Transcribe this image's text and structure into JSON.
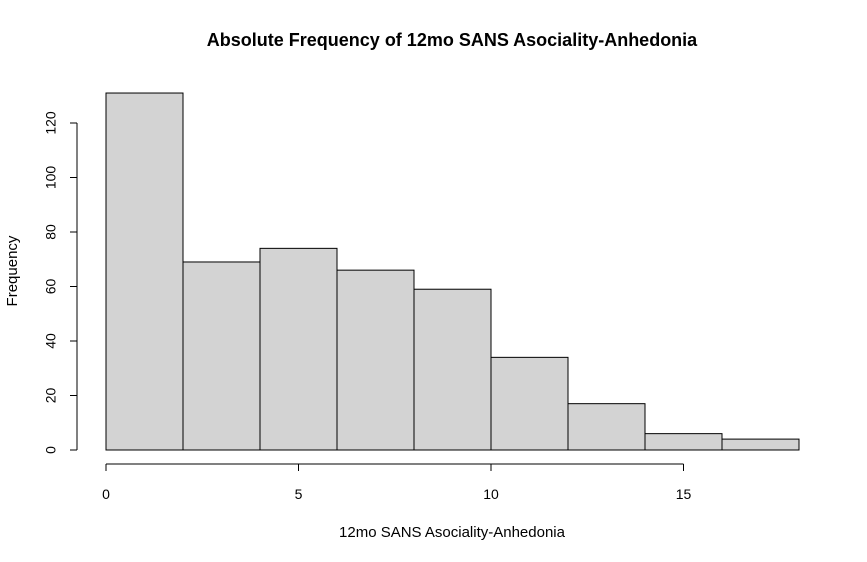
{
  "chart_data": {
    "type": "bar",
    "title": "Absolute Frequency of 12mo SANS Asociality-Anhedonia",
    "xlabel": "12mo SANS Asociality-Anhedonia",
    "ylabel": "Frequency",
    "bins": [
      {
        "x0": 0,
        "x1": 2,
        "count": 131
      },
      {
        "x0": 2,
        "x1": 4,
        "count": 69
      },
      {
        "x0": 4,
        "x1": 6,
        "count": 74
      },
      {
        "x0": 6,
        "x1": 8,
        "count": 66
      },
      {
        "x0": 8,
        "x1": 10,
        "count": 59
      },
      {
        "x0": 10,
        "x1": 12,
        "count": 34
      },
      {
        "x0": 12,
        "x1": 14,
        "count": 17
      },
      {
        "x0": 14,
        "x1": 16,
        "count": 6
      },
      {
        "x0": 16,
        "x1": 18,
        "count": 4
      }
    ],
    "xticks": [
      0,
      5,
      10,
      15
    ],
    "yticks": [
      0,
      20,
      40,
      60,
      80,
      100,
      120
    ],
    "xlim": [
      0,
      18
    ],
    "ylim": [
      0,
      131
    ],
    "bar_color": "#d3d3d3",
    "edge_color": "#000000",
    "grid": false,
    "legend": "none"
  }
}
